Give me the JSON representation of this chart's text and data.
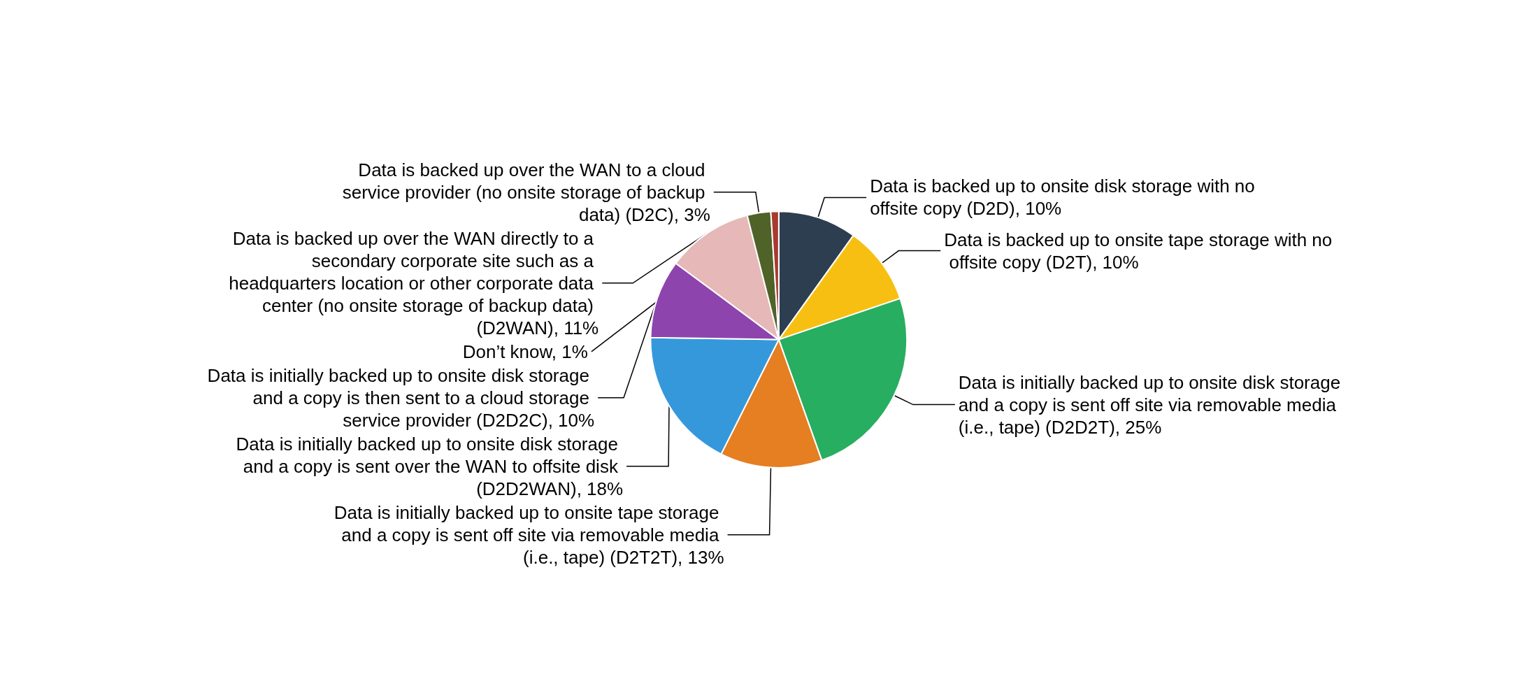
{
  "chart_data": {
    "type": "pie",
    "categories": [
      "Data is backed up to onsite disk storage with no offsite copy (D2D)",
      "Data is backed up to onsite tape storage with no offsite copy (D2T)",
      "Data is initially backed up to onsite disk storage and a copy is sent off site via removable media (i.e., tape) (D2D2T)",
      "Data is initially backed up to onsite tape storage and a copy is sent off site via removable media (i.e., tape) (D2T2T)",
      "Data is initially backed up to onsite disk storage and a copy is sent over the WAN to offsite disk (D2D2WAN)",
      "Data is initially backed up to onsite disk storage and a copy is then sent to a cloud storage service provider (D2D2C)",
      "Data is backed up over the WAN directly to a secondary corporate site such as a headquarters location or other corporate data center (no onsite storage of backup data) (D2WAN)",
      "Data is backed up over the WAN to a cloud service provider (no onsite storage of backup data) (D2C)",
      "Don’t know"
    ],
    "values": [
      10,
      10,
      25,
      13,
      18,
      10,
      11,
      3,
      1
    ],
    "value_labels": [
      "10%",
      "10%",
      "25%",
      "13%",
      "18%",
      "10%",
      "11%",
      "3%",
      "1%"
    ],
    "colors": [
      "#2c3e50",
      "#f8bf13",
      "#27ae60",
      "#e67e22",
      "#3598db",
      "#8e44ad",
      "#e6b8b7",
      "#4f6228",
      "#a93a2f"
    ],
    "legend": false
  }
}
